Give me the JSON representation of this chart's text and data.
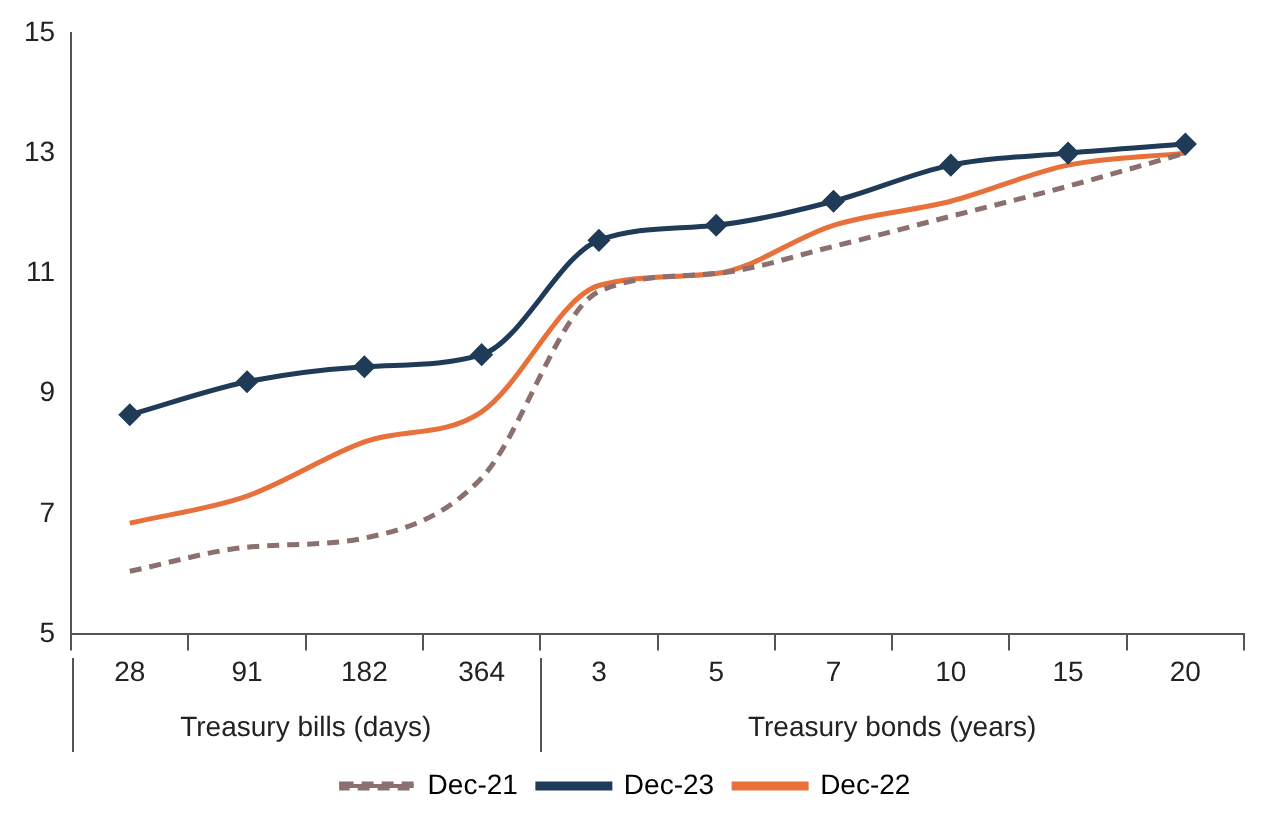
{
  "chart_data": {
    "type": "line",
    "categories": [
      "28",
      "91",
      "182",
      "364",
      "3",
      "5",
      "7",
      "10",
      "15",
      "20"
    ],
    "series": [
      {
        "name": "Dec-21",
        "color": "#8c6f6f",
        "line_style": "dashed",
        "marker": "none",
        "values": [
          6.05,
          6.45,
          6.6,
          7.6,
          10.7,
          11.0,
          11.45,
          11.95,
          12.45,
          13.0
        ]
      },
      {
        "name": "Dec-23",
        "color": "#1f3b57",
        "line_style": "solid",
        "marker": "diamond",
        "values": [
          8.65,
          9.2,
          9.45,
          9.65,
          11.55,
          11.8,
          12.2,
          12.8,
          13.0,
          13.15
        ]
      },
      {
        "name": "Dec-22",
        "color": "#e8703a",
        "line_style": "solid",
        "marker": "none",
        "values": [
          6.85,
          7.3,
          8.2,
          8.7,
          10.8,
          11.0,
          11.8,
          12.2,
          12.8,
          13.0
        ]
      }
    ],
    "ylim": [
      5,
      15
    ],
    "yticks": [
      5,
      7,
      9,
      11,
      13,
      15
    ],
    "grid": false,
    "legend": "bottom",
    "annotations": [
      "Treasury bills (days)",
      "Treasury bonds (years)"
    ]
  }
}
